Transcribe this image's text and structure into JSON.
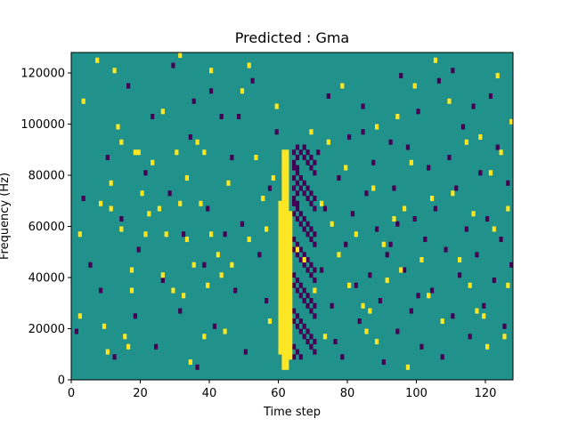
{
  "chart_data": {
    "type": "heatmap",
    "title": "Predicted : Gma",
    "xlabel": "Time step",
    "ylabel": "Frequency (Hz)",
    "xlim": [
      0,
      128
    ],
    "ylim": [
      0,
      128000
    ],
    "x_ticks": [
      0,
      20,
      40,
      60,
      80,
      100,
      120
    ],
    "y_ticks": [
      0,
      20000,
      40000,
      60000,
      80000,
      100000,
      120000
    ],
    "y_tick_labels": [
      "0",
      "20000",
      "40000",
      "60000",
      "80000",
      "100000",
      "120000"
    ],
    "n_time_steps": 128,
    "n_freq_bins": 64,
    "grid": false,
    "colors": {
      "background": "#21918c",
      "low": "#440154",
      "high": "#fde725"
    },
    "value_levels": {
      "low": -1,
      "background": 0,
      "high": 1
    },
    "yellow_band": {
      "x_start": 60,
      "x_end": 63,
      "freq_start": 4000,
      "freq_end": 90000
    },
    "dark_band": {
      "x_start": 64,
      "x_end": 70,
      "freq_start": 8000,
      "freq_end": 92000
    },
    "yellow_cells": [
      [
        2,
        12
      ],
      [
        2,
        28
      ],
      [
        3,
        54
      ],
      [
        7,
        62
      ],
      [
        8,
        34
      ],
      [
        9,
        10
      ],
      [
        10,
        5
      ],
      [
        11,
        33
      ],
      [
        11,
        38
      ],
      [
        12,
        60
      ],
      [
        13,
        49
      ],
      [
        14,
        46
      ],
      [
        15,
        8
      ],
      [
        16,
        6
      ],
      [
        17,
        17
      ],
      [
        17,
        21
      ],
      [
        18,
        44
      ],
      [
        19,
        44
      ],
      [
        21,
        28
      ],
      [
        22,
        32
      ],
      [
        23,
        42
      ],
      [
        25,
        33
      ],
      [
        26,
        20
      ],
      [
        27,
        28
      ],
      [
        29,
        17
      ],
      [
        30,
        44
      ],
      [
        31,
        34
      ],
      [
        31,
        63
      ],
      [
        32,
        16
      ],
      [
        33,
        27
      ],
      [
        34,
        3
      ],
      [
        35,
        22
      ],
      [
        36,
        46
      ],
      [
        37,
        34
      ],
      [
        38,
        44
      ],
      [
        38,
        8
      ],
      [
        39,
        18
      ],
      [
        40,
        28
      ],
      [
        40,
        60
      ],
      [
        42,
        24
      ],
      [
        43,
        20
      ],
      [
        44,
        9
      ],
      [
        46,
        22
      ],
      [
        49,
        56
      ],
      [
        51,
        27
      ],
      [
        53,
        43
      ],
      [
        55,
        35
      ],
      [
        57,
        11
      ],
      [
        58,
        39
      ],
      [
        59,
        53
      ],
      [
        61,
        40
      ],
      [
        63,
        11
      ],
      [
        65,
        25
      ],
      [
        67,
        23
      ],
      [
        69,
        48
      ],
      [
        70,
        17
      ],
      [
        72,
        34
      ],
      [
        73,
        8
      ],
      [
        75,
        30
      ],
      [
        77,
        24
      ],
      [
        78,
        57
      ],
      [
        79,
        41
      ],
      [
        80,
        18
      ],
      [
        82,
        28
      ],
      [
        84,
        14
      ],
      [
        85,
        9
      ],
      [
        86,
        13
      ],
      [
        87,
        37
      ],
      [
        88,
        49
      ],
      [
        90,
        26
      ],
      [
        91,
        19
      ],
      [
        93,
        31
      ],
      [
        94,
        51
      ],
      [
        95,
        21
      ],
      [
        96,
        33
      ],
      [
        98,
        42
      ],
      [
        99,
        57
      ],
      [
        101,
        23
      ],
      [
        103,
        16
      ],
      [
        105,
        62
      ],
      [
        107,
        11
      ],
      [
        109,
        54
      ],
      [
        110,
        36
      ],
      [
        112,
        23
      ],
      [
        114,
        46
      ],
      [
        115,
        18
      ],
      [
        116,
        32
      ],
      [
        118,
        47
      ],
      [
        119,
        12
      ],
      [
        120,
        6
      ],
      [
        121,
        40
      ],
      [
        122,
        29
      ],
      [
        123,
        59
      ],
      [
        124,
        44
      ],
      [
        125,
        8
      ],
      [
        126,
        18
      ],
      [
        127,
        50
      ],
      [
        20,
        36
      ],
      [
        45,
        38
      ],
      [
        56,
        29
      ],
      [
        88,
        7
      ],
      [
        104,
        35
      ],
      [
        26,
        52
      ],
      [
        74,
        46
      ],
      [
        117,
        13
      ],
      [
        14,
        29
      ],
      [
        51,
        61
      ],
      [
        97,
        2
      ],
      [
        33,
        39
      ],
      [
        126,
        33
      ]
    ],
    "dark_cells": [
      [
        1,
        9
      ],
      [
        3,
        35
      ],
      [
        5,
        22
      ],
      [
        8,
        17
      ],
      [
        10,
        43
      ],
      [
        12,
        4
      ],
      [
        14,
        31
      ],
      [
        16,
        57
      ],
      [
        18,
        12
      ],
      [
        19,
        25
      ],
      [
        21,
        40
      ],
      [
        23,
        51
      ],
      [
        24,
        6
      ],
      [
        26,
        19
      ],
      [
        28,
        36
      ],
      [
        29,
        61
      ],
      [
        31,
        13
      ],
      [
        32,
        28
      ],
      [
        34,
        47
      ],
      [
        35,
        54
      ],
      [
        36,
        2
      ],
      [
        38,
        22
      ],
      [
        39,
        33
      ],
      [
        41,
        10
      ],
      [
        43,
        51
      ],
      [
        44,
        28
      ],
      [
        46,
        43
      ],
      [
        47,
        17
      ],
      [
        49,
        30
      ],
      [
        50,
        5
      ],
      [
        52,
        58
      ],
      [
        54,
        24
      ],
      [
        56,
        15
      ],
      [
        57,
        37
      ],
      [
        59,
        48
      ],
      [
        71,
        44
      ],
      [
        72,
        21
      ],
      [
        73,
        33
      ],
      [
        74,
        55
      ],
      [
        75,
        14
      ],
      [
        76,
        7
      ],
      [
        77,
        39
      ],
      [
        78,
        4
      ],
      [
        79,
        26
      ],
      [
        80,
        47
      ],
      [
        81,
        32
      ],
      [
        82,
        18
      ],
      [
        83,
        11
      ],
      [
        84,
        53
      ],
      [
        85,
        36
      ],
      [
        86,
        20
      ],
      [
        87,
        42
      ],
      [
        88,
        29
      ],
      [
        89,
        15
      ],
      [
        90,
        3
      ],
      [
        91,
        24
      ],
      [
        92,
        46
      ],
      [
        93,
        37
      ],
      [
        94,
        9
      ],
      [
        95,
        59
      ],
      [
        96,
        21
      ],
      [
        97,
        45
      ],
      [
        98,
        13
      ],
      [
        99,
        31
      ],
      [
        100,
        52
      ],
      [
        101,
        6
      ],
      [
        102,
        27
      ],
      [
        103,
        41
      ],
      [
        104,
        17
      ],
      [
        105,
        33
      ],
      [
        106,
        58
      ],
      [
        107,
        4
      ],
      [
        108,
        25
      ],
      [
        109,
        43
      ],
      [
        110,
        12
      ],
      [
        111,
        37
      ],
      [
        112,
        20
      ],
      [
        113,
        49
      ],
      [
        114,
        29
      ],
      [
        115,
        8
      ],
      [
        116,
        53
      ],
      [
        117,
        24
      ],
      [
        118,
        40
      ],
      [
        119,
        14
      ],
      [
        120,
        31
      ],
      [
        121,
        55
      ],
      [
        122,
        19
      ],
      [
        123,
        45
      ],
      [
        124,
        27
      ],
      [
        125,
        10
      ],
      [
        126,
        38
      ],
      [
        127,
        22
      ],
      [
        100,
        16
      ],
      [
        92,
        26
      ],
      [
        84,
        48
      ],
      [
        94,
        30
      ],
      [
        110,
        60
      ],
      [
        40,
        56
      ],
      [
        48,
        51
      ]
    ]
  }
}
